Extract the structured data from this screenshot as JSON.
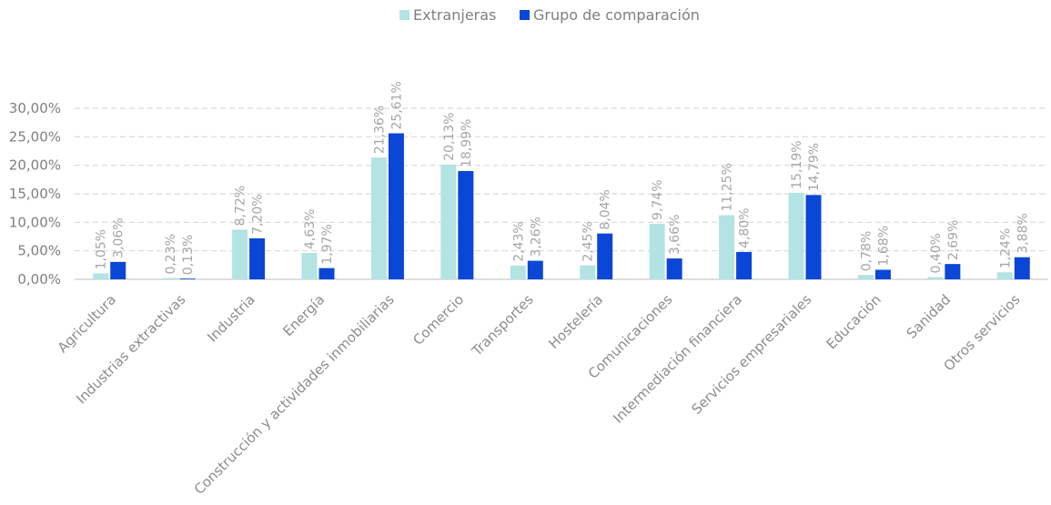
{
  "chart_data": {
    "type": "bar",
    "categories": [
      "Agricultura",
      "Industrias extractivas",
      "Industria",
      "Energía",
      "Construcción y actividades inmobiliarias",
      "Comercio",
      "Transportes",
      "Hostelería",
      "Comunicaciones",
      "Intermediación financiera",
      "Servicios empresariales",
      "Educación",
      "Sanidad",
      "Otros servicios"
    ],
    "series": [
      {
        "name": "Extranjeras",
        "values": [
          1.05,
          0.23,
          8.72,
          4.63,
          21.36,
          20.13,
          2.43,
          2.45,
          9.74,
          11.25,
          15.19,
          0.78,
          0.4,
          1.24
        ],
        "labels": [
          "1,05%",
          "0,23%",
          "8,72%",
          "4,63%",
          "21,36%",
          "20,13%",
          "2,43%",
          "2,45%",
          "9,74%",
          "11,25%",
          "15,19%",
          "0,78%",
          "0,40%",
          "1,24%"
        ]
      },
      {
        "name": "Grupo de comparación",
        "values": [
          3.06,
          0.13,
          7.2,
          1.97,
          25.61,
          18.99,
          3.26,
          8.04,
          3.66,
          4.8,
          14.79,
          1.68,
          2.69,
          3.88
        ],
        "labels": [
          "3,06%",
          "0,13%",
          "7,20%",
          "1,97%",
          "25,61%",
          "18,99%",
          "3,26%",
          "8,04%",
          "3,66%",
          "4,80%",
          "14,79%",
          "1,68%",
          "2,69%",
          "3,88%"
        ]
      }
    ],
    "colors": [
      "#b3e3e3",
      "#0b47d6"
    ],
    "ylim": [
      0,
      30
    ],
    "yticks": [
      0,
      5,
      10,
      15,
      20,
      25,
      30
    ],
    "ytick_labels": [
      "0,00%",
      "5,00%",
      "10,00%",
      "15,00%",
      "20,00%",
      "25,00%",
      "30,00%"
    ],
    "grid": true,
    "legend_position": "top-center",
    "xlabel": "",
    "ylabel": ""
  }
}
